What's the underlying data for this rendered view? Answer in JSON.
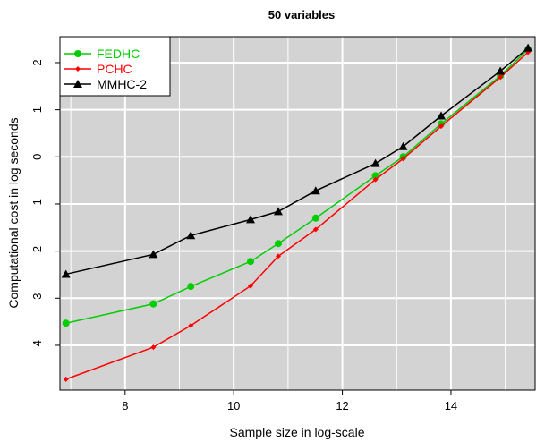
{
  "chart_data": {
    "type": "line",
    "title": "50 variables",
    "xlabel": "Sample size in log-scale",
    "ylabel": "Computational cost in log seconds",
    "xlim": [
      6.8,
      15.55
    ],
    "ylim": [
      -4.95,
      2.55
    ],
    "x_ticks": [
      8,
      10,
      12,
      14
    ],
    "y_ticks": [
      -4,
      -3,
      -2,
      -1,
      0,
      1,
      2
    ],
    "grid": true,
    "background": "#d3d3d3",
    "legend_position": "top-left",
    "x": [
      6.91,
      8.52,
      9.21,
      10.31,
      10.82,
      11.51,
      12.61,
      13.12,
      13.82,
      14.91,
      15.42
    ],
    "series": [
      {
        "name": "FEDHC",
        "color": "#00cd00",
        "marker": "circle",
        "values": [
          -3.53,
          -3.12,
          -2.75,
          -2.22,
          -1.84,
          -1.3,
          -0.4,
          0.0,
          0.7,
          1.72,
          2.28
        ]
      },
      {
        "name": "PCHC",
        "color": "#ff0000",
        "marker": "diamond",
        "values": [
          -4.72,
          -4.04,
          -3.58,
          -2.74,
          -2.11,
          -1.54,
          -0.48,
          -0.04,
          0.65,
          1.69,
          2.22
        ]
      },
      {
        "name": "MMHC-2",
        "color": "#000000",
        "marker": "triangle",
        "values": [
          -2.49,
          -2.07,
          -1.67,
          -1.33,
          -1.16,
          -0.72,
          -0.14,
          0.22,
          0.87,
          1.82,
          2.31
        ]
      }
    ]
  }
}
